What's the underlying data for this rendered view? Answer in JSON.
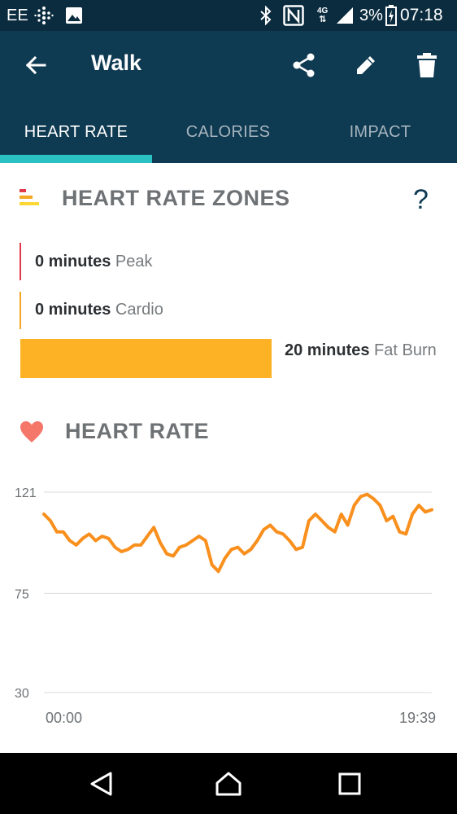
{
  "status_bar": {
    "carrier": "EE",
    "network": "4G",
    "battery": "3%",
    "time": "07:18"
  },
  "app_bar": {
    "title": "Walk",
    "icons": [
      "back-arrow-icon",
      "share-icon",
      "edit-icon",
      "delete-icon"
    ]
  },
  "tabs": [
    {
      "label": "HEART RATE",
      "active": true
    },
    {
      "label": "CALORIES",
      "active": false
    },
    {
      "label": "IMPACT",
      "active": false
    }
  ],
  "zones": {
    "title": "HEART RATE ZONES",
    "help": "?",
    "items": [
      {
        "minutes": "0 minutes",
        "zone": "Peak",
        "color": "#e2394a"
      },
      {
        "minutes": "0 minutes",
        "zone": "Cardio",
        "color": "#f5a623"
      },
      {
        "minutes": "20 minutes",
        "zone": "Fat Burn",
        "color": "#fdb124"
      }
    ]
  },
  "heart_rate_section": {
    "title": "HEART RATE"
  },
  "chart_data": {
    "type": "line",
    "y_ticks": [
      "121",
      "75",
      "30"
    ],
    "x_ticks": [
      "00:00",
      "19:39"
    ],
    "ylim": [
      30,
      121
    ],
    "grid": true,
    "series": [
      {
        "color": "#f98f1c",
        "values": [
          111,
          108,
          103,
          103,
          99,
          97,
          100,
          102,
          99,
          101,
          100,
          96,
          94,
          95,
          97,
          97,
          101,
          105,
          98,
          93,
          92,
          96,
          97,
          99,
          101,
          99,
          88,
          85,
          91,
          95,
          96,
          93,
          95,
          99,
          104,
          106,
          103,
          102,
          99,
          95,
          96,
          108,
          111,
          108,
          105,
          103,
          111,
          106,
          115,
          119,
          120,
          118,
          115,
          108,
          110,
          103,
          102,
          111,
          115,
          112,
          113
        ]
      }
    ]
  },
  "nav_bar": {
    "icons": [
      "back-triangle-icon",
      "home-icon",
      "recents-icon"
    ]
  },
  "colors": {
    "status_bar": "#0b2c3f",
    "app_bar": "#0e3a52",
    "tab_indicator": "#2cc1c2",
    "heart_icon": "#f4776a"
  }
}
